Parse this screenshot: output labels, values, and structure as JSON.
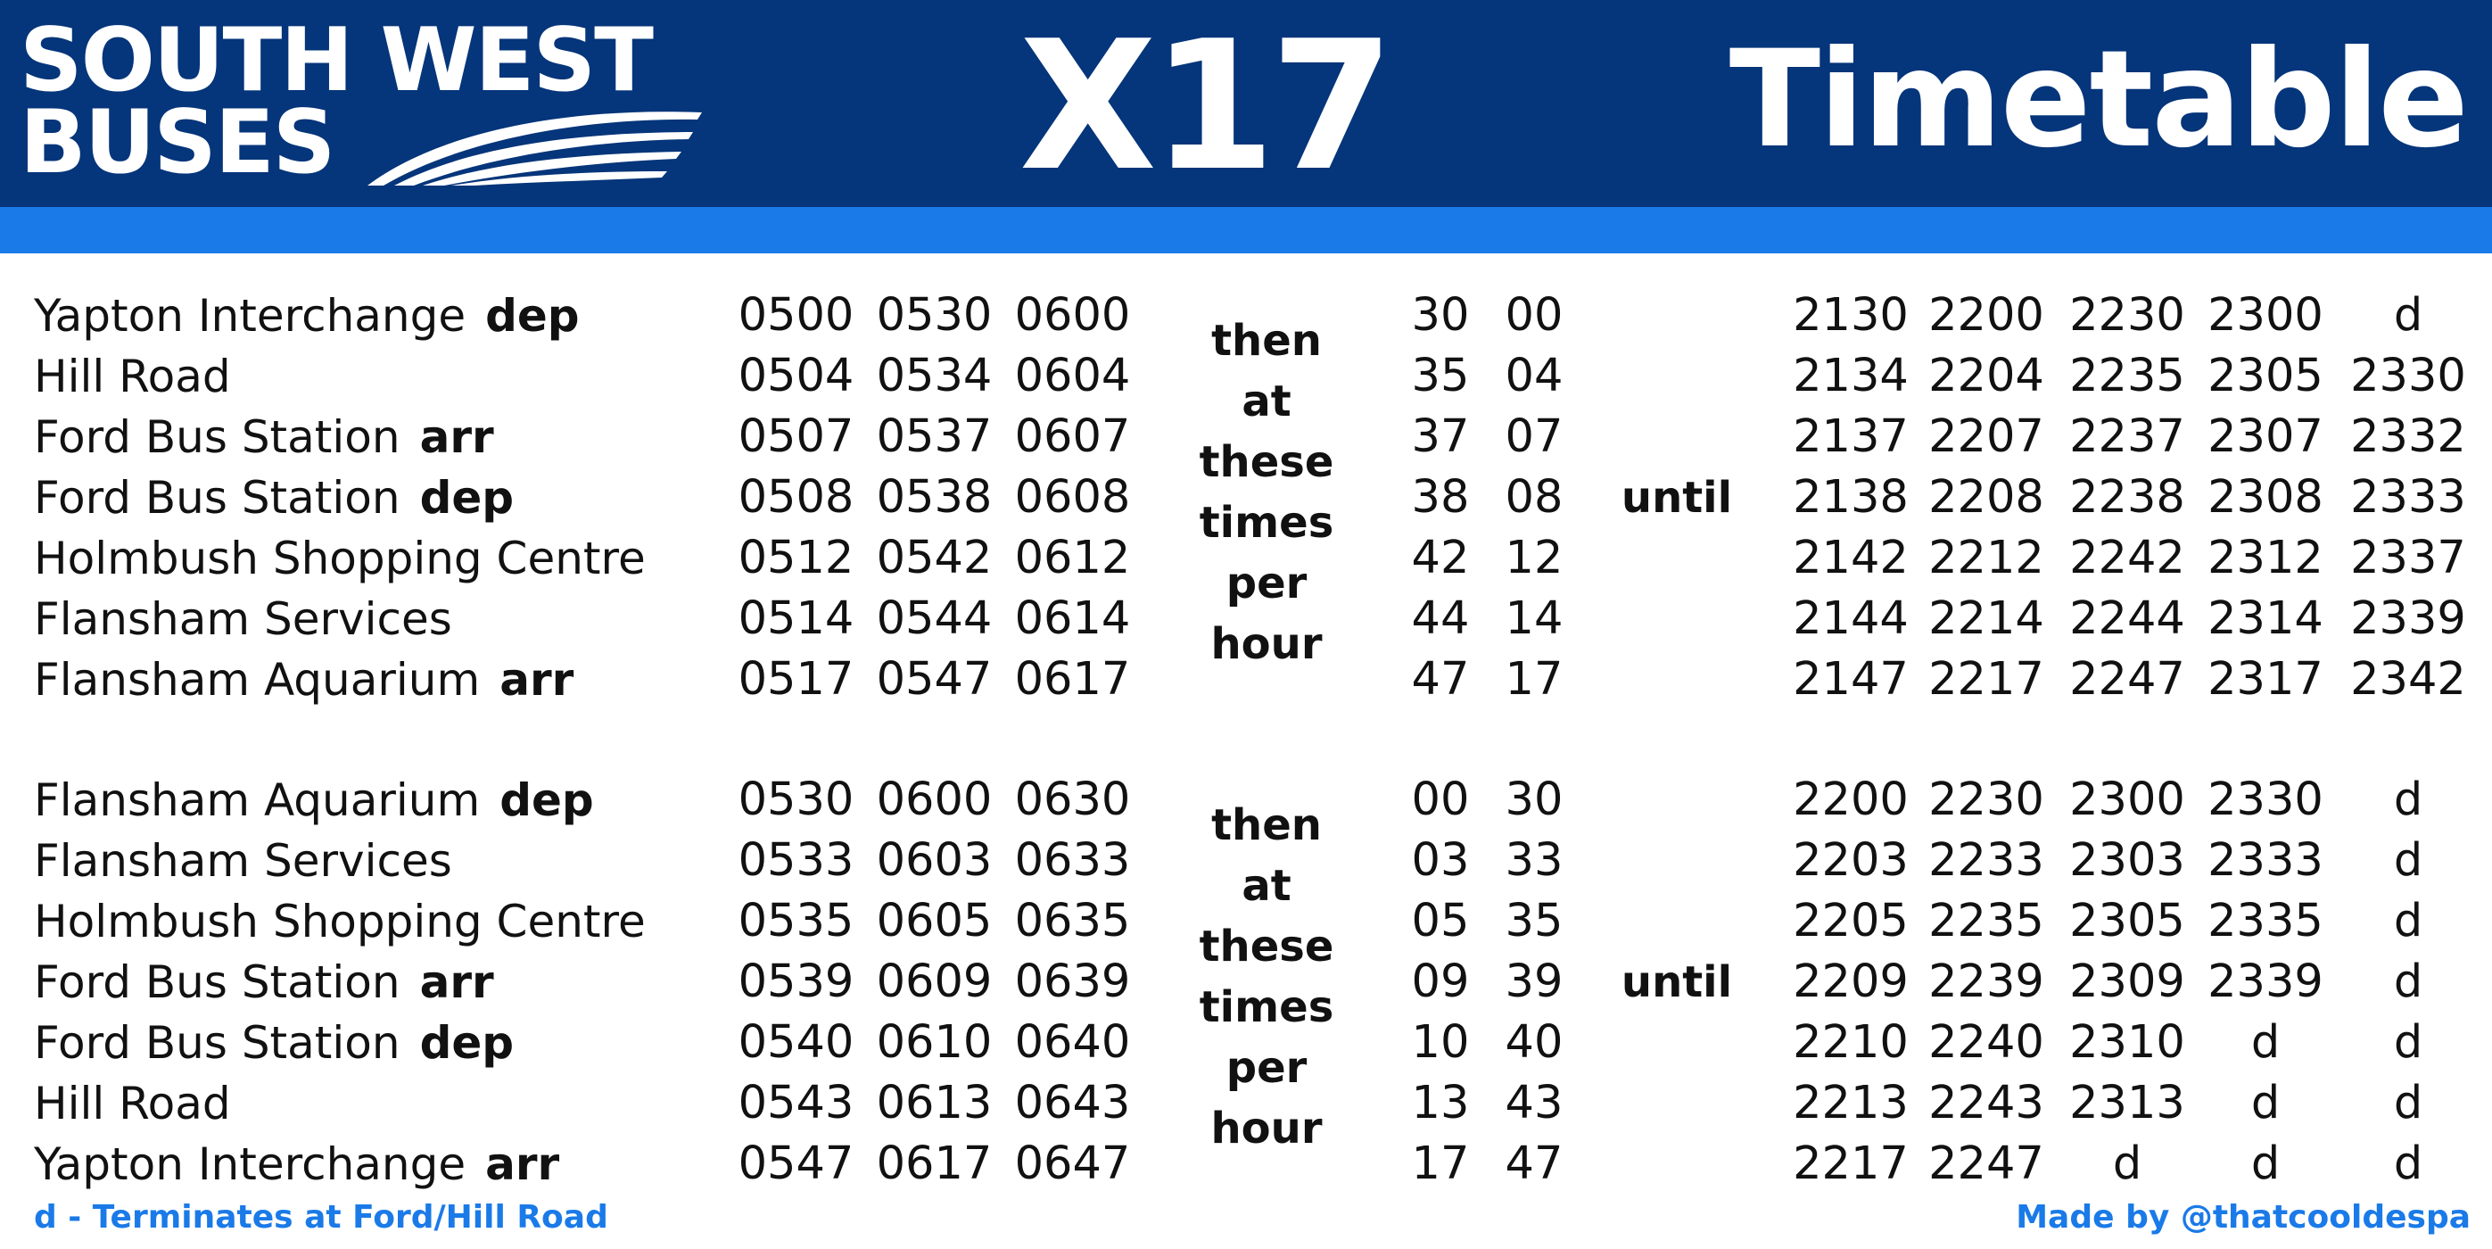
{
  "header": {
    "operator_line1": "SOUTH WEST",
    "operator_line2": "BUSES",
    "route": "X17",
    "title": "Timetable",
    "colors": {
      "header_bg": "#05357a",
      "stripe": "#1a7ae8",
      "footer_text": "#1a7ae8"
    }
  },
  "sections": [
    {
      "stops": [
        {
          "name": "Yapton Interchange",
          "tag": "dep"
        },
        {
          "name": "Hill Road",
          "tag": ""
        },
        {
          "name": "Ford Bus Station",
          "tag": "arr"
        },
        {
          "name": "Ford Bus Station",
          "tag": "dep"
        },
        {
          "name": "Holmbush Shopping Centre",
          "tag": ""
        },
        {
          "name": "Flansham Services",
          "tag": ""
        },
        {
          "name": "Flansham Aquarium",
          "tag": "arr"
        }
      ],
      "early": [
        [
          "0500",
          "0530",
          "0600"
        ],
        [
          "0504",
          "0534",
          "0604"
        ],
        [
          "0507",
          "0537",
          "0607"
        ],
        [
          "0508",
          "0538",
          "0608"
        ],
        [
          "0512",
          "0542",
          "0612"
        ],
        [
          "0514",
          "0544",
          "0614"
        ],
        [
          "0517",
          "0547",
          "0617"
        ]
      ],
      "then_text": [
        "then",
        "at",
        "these",
        "times",
        "per",
        "hour"
      ],
      "minutes": [
        [
          "30",
          "00"
        ],
        [
          "35",
          "04"
        ],
        [
          "37",
          "07"
        ],
        [
          "38",
          "08"
        ],
        [
          "42",
          "12"
        ],
        [
          "44",
          "14"
        ],
        [
          "47",
          "17"
        ]
      ],
      "until_text": "until",
      "late": [
        [
          "2130",
          "2200",
          "2230",
          "2300",
          "d"
        ],
        [
          "2134",
          "2204",
          "2235",
          "2305",
          "2330"
        ],
        [
          "2137",
          "2207",
          "2237",
          "2307",
          "2332"
        ],
        [
          "2138",
          "2208",
          "2238",
          "2308",
          "2333"
        ],
        [
          "2142",
          "2212",
          "2242",
          "2312",
          "2337"
        ],
        [
          "2144",
          "2214",
          "2244",
          "2314",
          "2339"
        ],
        [
          "2147",
          "2217",
          "2247",
          "2317",
          "2342"
        ]
      ]
    },
    {
      "stops": [
        {
          "name": "Flansham Aquarium",
          "tag": "dep"
        },
        {
          "name": "Flansham Services",
          "tag": ""
        },
        {
          "name": "Holmbush Shopping Centre",
          "tag": ""
        },
        {
          "name": "Ford Bus Station",
          "tag": "arr"
        },
        {
          "name": "Ford Bus Station",
          "tag": "dep"
        },
        {
          "name": "Hill Road",
          "tag": ""
        },
        {
          "name": "Yapton Interchange",
          "tag": "arr"
        }
      ],
      "early": [
        [
          "0530",
          "0600",
          "0630"
        ],
        [
          "0533",
          "0603",
          "0633"
        ],
        [
          "0535",
          "0605",
          "0635"
        ],
        [
          "0539",
          "0609",
          "0639"
        ],
        [
          "0540",
          "0610",
          "0640"
        ],
        [
          "0543",
          "0613",
          "0643"
        ],
        [
          "0547",
          "0617",
          "0647"
        ]
      ],
      "then_text": [
        "then",
        "at",
        "these",
        "times",
        "per",
        "hour"
      ],
      "minutes": [
        [
          "00",
          "30"
        ],
        [
          "03",
          "33"
        ],
        [
          "05",
          "35"
        ],
        [
          "09",
          "39"
        ],
        [
          "10",
          "40"
        ],
        [
          "13",
          "43"
        ],
        [
          "17",
          "47"
        ]
      ],
      "until_text": "until",
      "late": [
        [
          "2200",
          "2230",
          "2300",
          "2330",
          "d"
        ],
        [
          "2203",
          "2233",
          "2303",
          "2333",
          "d"
        ],
        [
          "2205",
          "2235",
          "2305",
          "2335",
          "d"
        ],
        [
          "2209",
          "2239",
          "2309",
          "2339",
          "d"
        ],
        [
          "2210",
          "2240",
          "2310",
          "d",
          "d"
        ],
        [
          "2213",
          "2243",
          "2313",
          "d",
          "d"
        ],
        [
          "2217",
          "2247",
          "d",
          "d",
          "d"
        ]
      ]
    }
  ],
  "footer": {
    "note": "d - Terminates at Ford/Hill Road",
    "credit": "Made by @thatcooldespa"
  }
}
